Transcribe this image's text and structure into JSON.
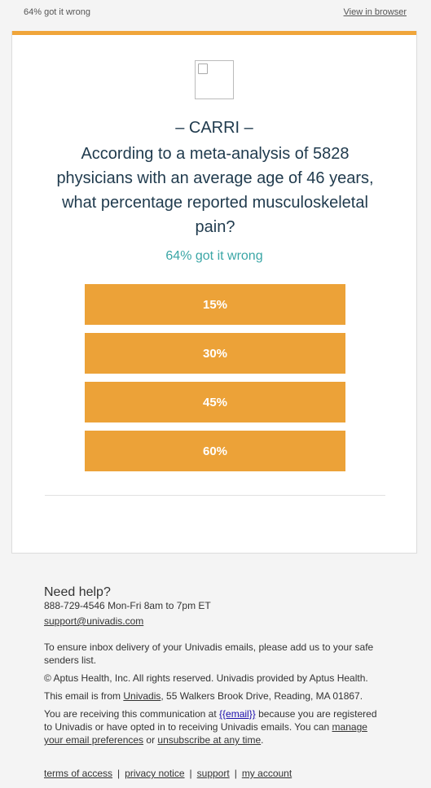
{
  "header": {
    "preheader": "64% got it wrong",
    "view_in_browser": "View in browser"
  },
  "quiz": {
    "kicker": "– CARRI –",
    "question": "According to a meta-analysis of 5828 physicians with an average age of 46 years, what percentage reported musculoskeletal pain?",
    "stat": "64% got it wrong",
    "answers": [
      "15%",
      "30%",
      "45%",
      "60%"
    ]
  },
  "colors": {
    "accent": "#f0a53a",
    "answer_bg": "#eca238",
    "stat_text": "#3aa6a6",
    "heading_text": "#1f3a4d"
  },
  "footer": {
    "help_title": "Need help?",
    "phone_hours": "888-729-4546 Mon-Fri 8am to 7pm ET",
    "support_email": "support@univadis.com",
    "safe_senders": "To ensure inbox delivery of your Univadis emails, please add us to your safe senders list.",
    "copyright": "© Aptus Health, Inc. All rights reserved. Univadis provided by Aptus Health.",
    "from_prefix": "This email is from ",
    "from_link": "Univadis",
    "from_suffix": ", 55 Walkers Brook Drive, Reading, MA 01867.",
    "receiving_prefix": "You are receiving this communication at ",
    "email_token": "{{email}}",
    "receiving_mid": " because you are registered to Univadis or have opted in to receiving Univadis emails. You can ",
    "manage_link": "manage your email preferences",
    "or_text": " or ",
    "unsubscribe_link": "unsubscribe at any time",
    "period": ".",
    "links": [
      "terms of access",
      "privacy notice",
      "support",
      "my account"
    ],
    "link_separator": "|"
  }
}
